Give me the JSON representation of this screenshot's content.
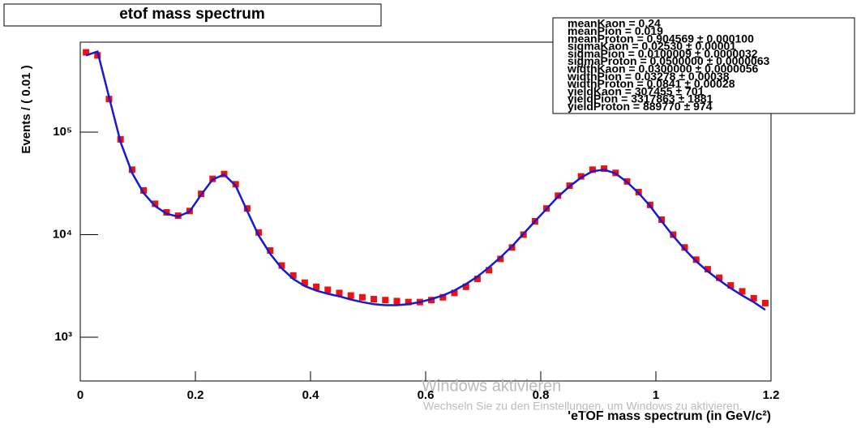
{
  "chart_data": {
    "type": "scatter",
    "title": "etof mass spectrum",
    "xlabel": "'eTOF mass spectrum (in GeV/c²)",
    "ylabel": "Events / ( 0.01 )",
    "log_y": true,
    "xlim": [
      0,
      1.2
    ],
    "ylim": [
      374,
      754000
    ],
    "xticks": [
      0,
      0.2,
      0.4,
      0.6,
      0.8,
      1,
      1.2
    ],
    "yticks": [
      {
        "value": 1000,
        "label": "10³"
      },
      {
        "value": 10000,
        "label": "10⁴"
      },
      {
        "value": 100000,
        "label": "10⁵"
      }
    ],
    "x": [
      0.01,
      0.03,
      0.05,
      0.07,
      0.09,
      0.11,
      0.13,
      0.15,
      0.17,
      0.19,
      0.21,
      0.23,
      0.25,
      0.27,
      0.29,
      0.31,
      0.33,
      0.35,
      0.37,
      0.39,
      0.41,
      0.43,
      0.45,
      0.47,
      0.49,
      0.51,
      0.53,
      0.55,
      0.57,
      0.59,
      0.61,
      0.63,
      0.65,
      0.67,
      0.69,
      0.71,
      0.73,
      0.75,
      0.77,
      0.79,
      0.81,
      0.83,
      0.85,
      0.87,
      0.89,
      0.91,
      0.93,
      0.95,
      0.97,
      0.99,
      1.01,
      1.03,
      1.05,
      1.07,
      1.09,
      1.11,
      1.13,
      1.15,
      1.17,
      1.19
    ],
    "series": [
      {
        "type": "scatter",
        "color": "#ee1111",
        "values": [
          600000,
          560000,
          210000,
          85000,
          43000,
          27000,
          20000,
          16500,
          15300,
          17000,
          25000,
          35000,
          39000,
          31000,
          18000,
          10500,
          7000,
          5000,
          4000,
          3400,
          3100,
          2900,
          2700,
          2550,
          2450,
          2350,
          2300,
          2250,
          2200,
          2200,
          2300,
          2450,
          2700,
          3100,
          3700,
          4500,
          5800,
          7500,
          10000,
          13500,
          18000,
          24000,
          30000,
          37000,
          43000,
          44000,
          40000,
          33000,
          26000,
          19500,
          14000,
          10000,
          7500,
          5700,
          4600,
          3800,
          3200,
          2800,
          2400,
          2150
        ]
      },
      {
        "type": "line",
        "color": "#1a1acc",
        "values": [
          560000,
          610000,
          220000,
          80000,
          40000,
          25500,
          19000,
          16000,
          15000,
          16800,
          24500,
          34500,
          38500,
          30000,
          17000,
          9800,
          6500,
          4700,
          3700,
          3150,
          2850,
          2650,
          2500,
          2330,
          2200,
          2100,
          2050,
          2050,
          2100,
          2200,
          2350,
          2550,
          2850,
          3300,
          3900,
          4800,
          6000,
          7700,
          10200,
          13500,
          17800,
          23500,
          29500,
          36000,
          41500,
          43000,
          39500,
          32500,
          25500,
          19000,
          13500,
          9700,
          7200,
          5500,
          4400,
          3600,
          3000,
          2550,
          2200,
          1850
        ]
      }
    ],
    "stats": [
      "meanKaon = 0.24",
      "meanPion = 0.019",
      "meanProton = 0.904569 ± 0.000100",
      "sigmaKaon = 0.02530 ± 0.00001",
      "sigmaPion = 0.0100009 ± 0.0000032",
      "sigmaProton = 0.0500000 ± 0.0000063",
      "widthKaon = 0.0300000 ± 0.0000056",
      "widthPion = 0.03278 ± 0.00038",
      "widthProton = 0.0841 ± 0.00028",
      "yieldKaon = 307455 ± 701",
      "yieldPion = 3317863 ± 1881",
      "yieldProton = 889770 ± 974"
    ]
  },
  "watermark": {
    "line1": "Windows aktivieren",
    "line2": "Wechseln Sie zu den Einstellungen, um Windows zu aktivieren."
  }
}
